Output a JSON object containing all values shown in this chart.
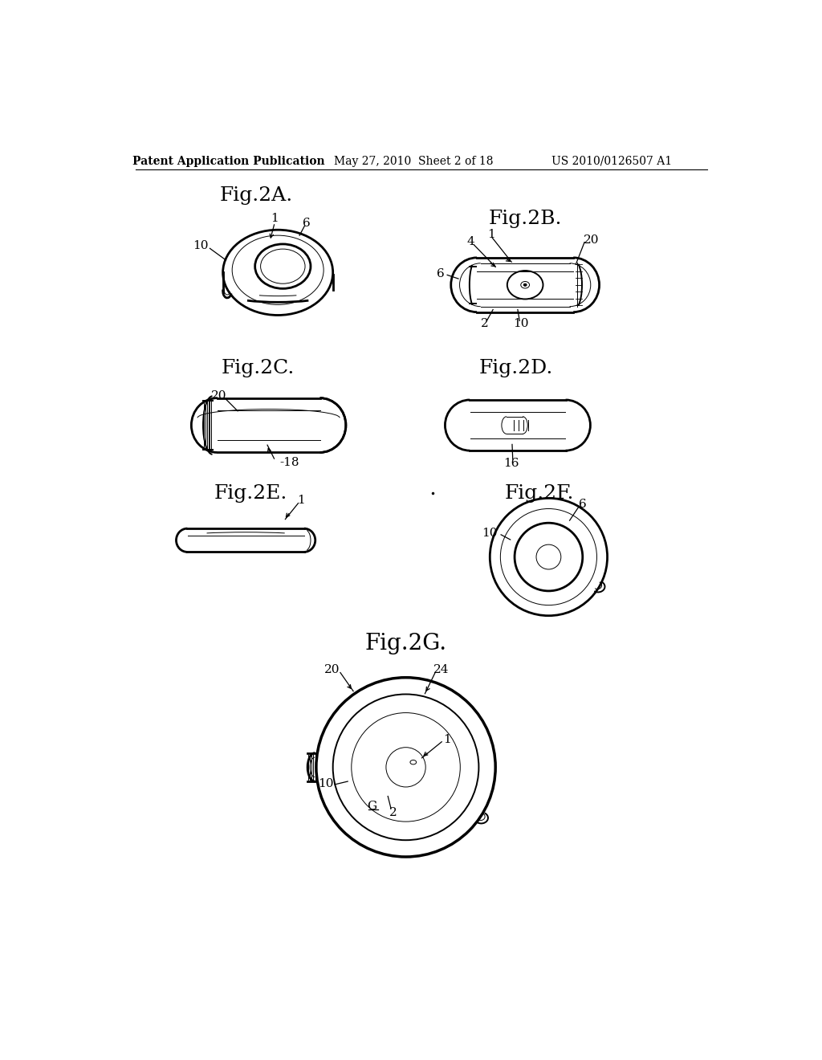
{
  "bg_color": "#ffffff",
  "title_color": "#000000",
  "line_color": "#000000",
  "header_left": "Patent Application Publication",
  "header_mid": "May 27, 2010  Sheet 2 of 18",
  "header_right": "US 2010/0126507 A1",
  "fig_label_fontsize": 18,
  "annot_fontsize": 11,
  "header_fontsize": 10
}
